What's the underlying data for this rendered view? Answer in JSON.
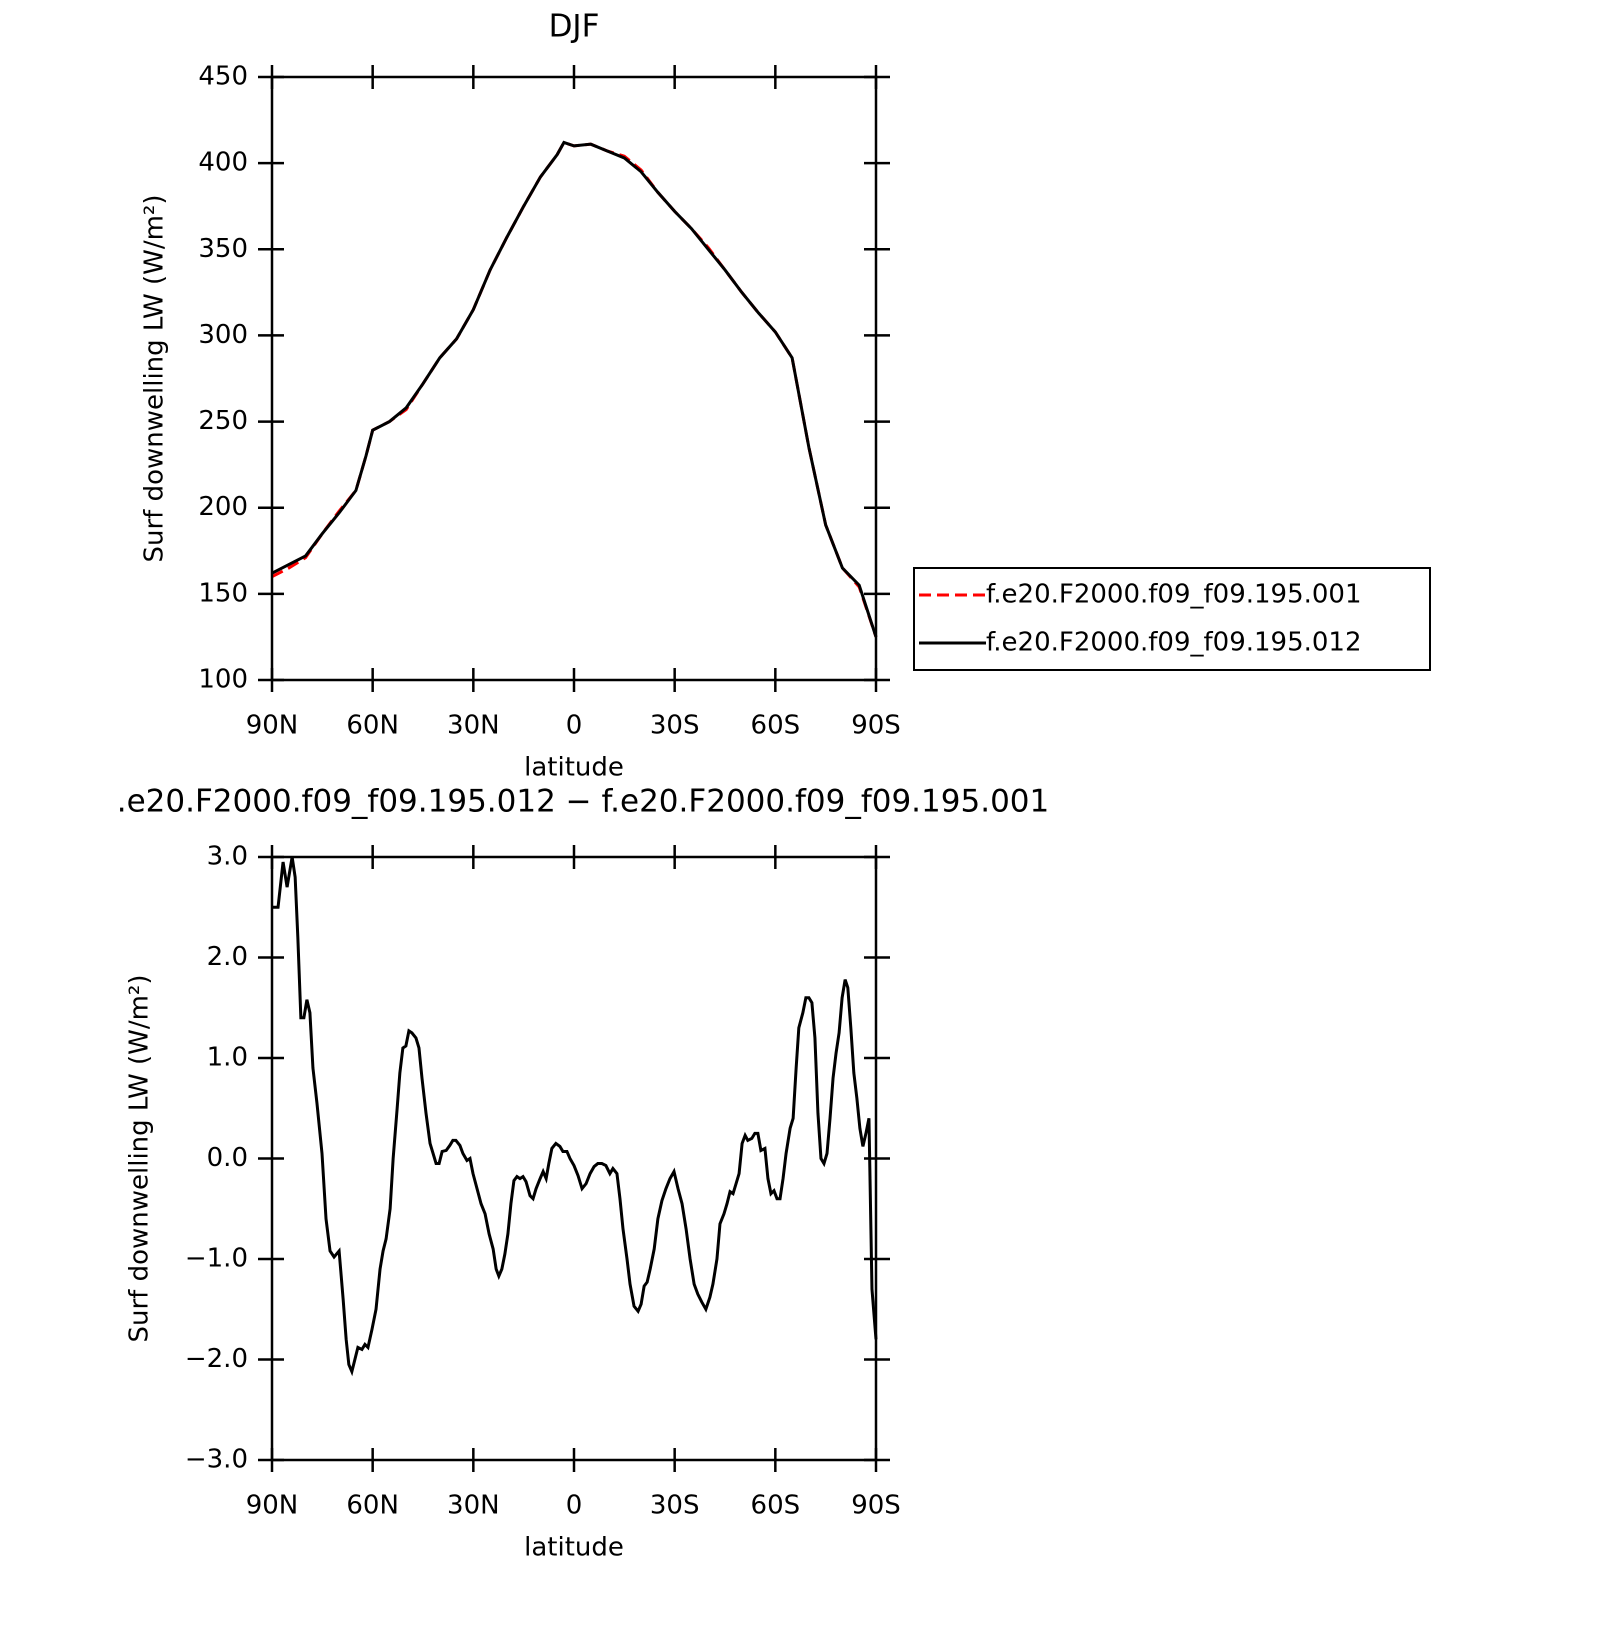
{
  "chart_data": [
    {
      "type": "line",
      "title": "DJF",
      "xlabel": "latitude",
      "ylabel": "Surf downwelling LW (W/m²)",
      "x": [
        90,
        85,
        80,
        75,
        70,
        65,
        62,
        60,
        55,
        50,
        45,
        40,
        35,
        30,
        25,
        20,
        15,
        10,
        5,
        3,
        0,
        -5,
        -10,
        -15,
        -20,
        -25,
        -30,
        -35,
        -40,
        -45,
        -50,
        -55,
        -60,
        -65,
        -70,
        -75,
        -80,
        -85,
        -90
      ],
      "series": [
        {
          "name": "f.e20.F2000.f09_f09.195.001",
          "color": "#ff0000",
          "line_style": "dashed",
          "values": [
            160,
            165,
            171,
            185,
            198,
            210,
            230,
            245,
            250,
            257,
            272,
            287,
            298,
            315,
            338,
            357,
            375,
            392,
            405,
            412,
            410,
            411,
            407,
            404,
            396,
            383,
            372,
            362,
            351,
            338,
            325,
            313,
            302,
            287,
            235,
            190,
            165,
            154,
            125
          ]
        },
        {
          "name": "f.e20.F2000.f09_f09.195.012",
          "color": "#000000",
          "line_style": "solid",
          "values": [
            162,
            167,
            172,
            185,
            197,
            210,
            230,
            245,
            250,
            258,
            272,
            287,
            298,
            315,
            338,
            357,
            375,
            392,
            405,
            412,
            410,
            411,
            407,
            403,
            395,
            383,
            372,
            362,
            350,
            338,
            325,
            313,
            302,
            287,
            235,
            190,
            165,
            155,
            125
          ]
        }
      ],
      "xlim": [
        90,
        -90
      ],
      "xticks": [
        {
          "value": 90,
          "label": "90N"
        },
        {
          "value": 60,
          "label": "60N"
        },
        {
          "value": 30,
          "label": "30N"
        },
        0,
        {
          "value": -30,
          "label": "30S"
        },
        {
          "value": -60,
          "label": "60S"
        },
        {
          "value": -90,
          "label": "90S"
        }
      ],
      "ylim": [
        100,
        450
      ],
      "yticks": [
        100,
        150,
        200,
        250,
        300,
        350,
        400,
        450
      ],
      "legend": "outside-right"
    },
    {
      "type": "line",
      "title": ".e20.F2000.f09_f09.195.012 − f.e20.F2000.f09_f09.195.001",
      "xlabel": "latitude",
      "ylabel": "Surf downwelling LW (W/m²)",
      "x": [
        90,
        88.2,
        86.7,
        85.5,
        84.0,
        83.1,
        82.3,
        81.4,
        80.5,
        79.6,
        78.7,
        77.8,
        76.6,
        75.1,
        73.9,
        72.7,
        71.5,
        70.0,
        68.8,
        67.9,
        67.1,
        66.2,
        65.3,
        64.4,
        63.2,
        62.3,
        61.4,
        60.2,
        59.0,
        57.8,
        56.9,
        56.0,
        54.8,
        53.9,
        52.7,
        51.9,
        51.0,
        50.1,
        49.2,
        48.3,
        47.1,
        46.2,
        45.3,
        44.1,
        42.9,
        42.0,
        41.1,
        40.2,
        39.3,
        38.1,
        37.0,
        36.1,
        35.2,
        34.0,
        33.1,
        31.9,
        31.0,
        30.1,
        28.9,
        27.7,
        26.5,
        25.3,
        24.1,
        23.2,
        22.4,
        21.5,
        20.6,
        19.7,
        18.8,
        17.9,
        17.0,
        16.1,
        15.2,
        14.3,
        13.1,
        12.2,
        11.3,
        10.1,
        9.2,
        8.3,
        7.5,
        6.6,
        5.4,
        4.2,
        3.3,
        2.1,
        1.2,
        0.0,
        -1.2,
        -2.4,
        -3.6,
        -4.8,
        -6.0,
        -7.1,
        -8.3,
        -9.5,
        -10.7,
        -11.6,
        -12.8,
        -13.7,
        -14.6,
        -15.8,
        -16.7,
        -17.9,
        -19.1,
        -20.0,
        -20.9,
        -21.8,
        -22.7,
        -23.9,
        -25.0,
        -26.2,
        -27.4,
        -28.6,
        -29.8,
        -31.0,
        -32.2,
        -33.4,
        -34.6,
        -35.8,
        -36.9,
        -38.1,
        -39.3,
        -40.5,
        -41.4,
        -42.6,
        -43.5,
        -44.7,
        -45.6,
        -46.5,
        -47.4,
        -48.3,
        -49.2,
        -50.1,
        -51.0,
        -51.8,
        -53.0,
        -53.9,
        -54.8,
        -55.7,
        -56.9,
        -57.8,
        -58.7,
        -59.6,
        -60.5,
        -61.4,
        -62.3,
        -63.2,
        -64.4,
        -65.3,
        -66.2,
        -67.0,
        -68.2,
        -69.1,
        -70.0,
        -70.9,
        -71.8,
        -72.7,
        -73.6,
        -74.5,
        -75.4,
        -76.3,
        -77.2,
        -78.1,
        -79.0,
        -79.9,
        -80.8,
        -81.6,
        -82.5,
        -83.4,
        -84.3,
        -85.2,
        -86.1,
        -87.0,
        -87.9,
        -88.8,
        -90
      ],
      "series": [
        {
          "color": "#000000",
          "line_style": "solid",
          "values": [
            2.5,
            2.5,
            2.95,
            2.7,
            3.0,
            2.8,
            2.2,
            1.4,
            1.4,
            1.58,
            1.45,
            0.9,
            0.55,
            0.05,
            -0.6,
            -0.92,
            -0.98,
            -0.92,
            -1.4,
            -1.8,
            -2.05,
            -2.12,
            -2.0,
            -1.88,
            -1.9,
            -1.85,
            -1.88,
            -1.7,
            -1.5,
            -1.1,
            -0.92,
            -0.8,
            -0.5,
            0.0,
            0.5,
            0.85,
            1.1,
            1.12,
            1.27,
            1.25,
            1.2,
            1.1,
            0.8,
            0.45,
            0.15,
            0.05,
            -0.05,
            -0.05,
            0.07,
            0.08,
            0.13,
            0.18,
            0.18,
            0.13,
            0.05,
            -0.02,
            0.0,
            -0.15,
            -0.3,
            -0.45,
            -0.55,
            -0.75,
            -0.9,
            -1.1,
            -1.17,
            -1.1,
            -0.95,
            -0.75,
            -0.45,
            -0.22,
            -0.18,
            -0.2,
            -0.18,
            -0.23,
            -0.37,
            -0.4,
            -0.3,
            -0.2,
            -0.13,
            -0.2,
            -0.05,
            0.1,
            0.15,
            0.12,
            0.07,
            0.07,
            0.0,
            -0.07,
            -0.17,
            -0.3,
            -0.25,
            -0.15,
            -0.08,
            -0.05,
            -0.05,
            -0.07,
            -0.15,
            -0.1,
            -0.15,
            -0.4,
            -0.7,
            -1.0,
            -1.25,
            -1.47,
            -1.52,
            -1.45,
            -1.27,
            -1.23,
            -1.1,
            -0.9,
            -0.6,
            -0.42,
            -0.3,
            -0.2,
            -0.13,
            -0.3,
            -0.45,
            -0.7,
            -1.0,
            -1.25,
            -1.35,
            -1.43,
            -1.5,
            -1.38,
            -1.25,
            -1.0,
            -0.65,
            -0.55,
            -0.45,
            -0.33,
            -0.35,
            -0.25,
            -0.15,
            0.15,
            0.23,
            0.18,
            0.2,
            0.25,
            0.25,
            0.08,
            0.1,
            -0.2,
            -0.35,
            -0.32,
            -0.4,
            -0.4,
            -0.2,
            0.05,
            0.3,
            0.4,
            0.9,
            1.3,
            1.45,
            1.6,
            1.6,
            1.55,
            1.2,
            0.45,
            0.0,
            -0.05,
            0.05,
            0.4,
            0.8,
            1.05,
            1.25,
            1.6,
            1.78,
            1.7,
            1.3,
            0.85,
            0.6,
            0.3,
            0.12,
            0.25,
            0.4,
            -1.3,
            -1.8
          ]
        }
      ],
      "xlim": [
        90,
        -90
      ],
      "xticks": [
        {
          "value": 90,
          "label": "90N"
        },
        {
          "value": 60,
          "label": "60N"
        },
        {
          "value": 30,
          "label": "30N"
        },
        0,
        {
          "value": -30,
          "label": "30S"
        },
        {
          "value": -60,
          "label": "60S"
        },
        {
          "value": -90,
          "label": "90S"
        }
      ],
      "ylim": [
        -3,
        3
      ],
      "yticks": [
        {
          "value": -3,
          "label": "−3.0"
        },
        {
          "value": -2,
          "label": "−2.0"
        },
        {
          "value": -1,
          "label": "−1.0"
        },
        {
          "value": 0,
          "label": "0.0"
        },
        {
          "value": 1,
          "label": "1.0"
        },
        {
          "value": 2,
          "label": "2.0"
        },
        {
          "value": 3,
          "label": "3.0"
        }
      ]
    }
  ]
}
